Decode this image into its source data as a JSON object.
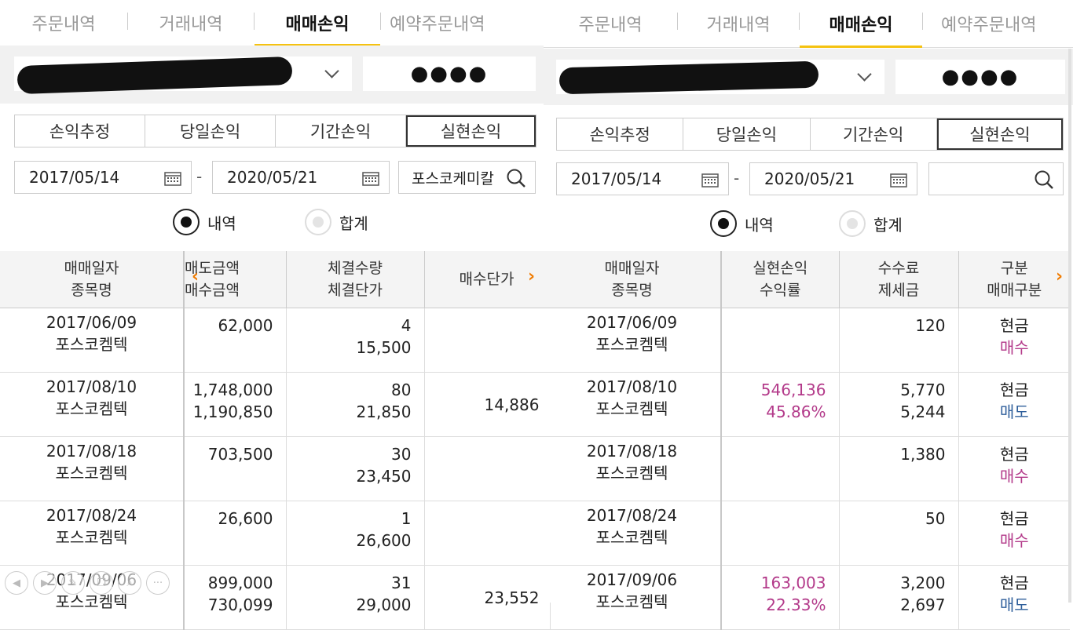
{
  "tabs": [
    "주문내역",
    "거래내역",
    "매매손익",
    "예약주문내역"
  ],
  "account": {
    "password_mask": "●●●●"
  },
  "segments": [
    "손익추정",
    "당일손익",
    "기간손익",
    "실현손익"
  ],
  "date_range": {
    "from": "2017/05/14",
    "to": "2020/05/21",
    "separator": "-"
  },
  "search": {
    "left_value": "포스코케미칼",
    "right_value": ""
  },
  "radios": [
    "내역",
    "합계"
  ],
  "left_table": {
    "headers": [
      [
        "매매일자",
        "종목명"
      ],
      [
        "매도금액",
        "매수금액"
      ],
      [
        "체결수량",
        "체결단가"
      ],
      [
        "매수단가"
      ]
    ],
    "rows": [
      {
        "date": "2017/06/09",
        "name": "포스코켐텍",
        "sell": "",
        "buy": "62,000",
        "qty": "4",
        "price": "15,500",
        "avg": ""
      },
      {
        "date": "2017/08/10",
        "name": "포스코켐텍",
        "sell": "1,748,000",
        "buy": "1,190,850",
        "qty": "80",
        "price": "21,850",
        "avg": "14,886"
      },
      {
        "date": "2017/08/18",
        "name": "포스코켐텍",
        "sell": "",
        "buy": "703,500",
        "qty": "30",
        "price": "23,450",
        "avg": ""
      },
      {
        "date": "2017/08/24",
        "name": "포스코켐텍",
        "sell": "",
        "buy": "26,600",
        "qty": "1",
        "price": "26,600",
        "avg": ""
      },
      {
        "date": "2017/09/06",
        "name": "포스코켐텍",
        "sell": "899,000",
        "buy": "730,099",
        "qty": "31",
        "price": "29,000",
        "avg": "23,552"
      }
    ]
  },
  "right_table": {
    "headers": [
      [
        "매매일자",
        "종목명"
      ],
      [
        "실현손익",
        "수익률"
      ],
      [
        "수수료",
        "제세금"
      ],
      [
        "구분",
        "매매구분"
      ]
    ],
    "rows": [
      {
        "date": "2017/06/09",
        "name": "포스코켐텍",
        "pnl": "",
        "rate": "",
        "fee": "120",
        "tax": "",
        "cls": "현금",
        "side": "매수"
      },
      {
        "date": "2017/08/10",
        "name": "포스코켐텍",
        "pnl": "546,136",
        "rate": "45.86%",
        "fee": "5,770",
        "tax": "5,244",
        "cls": "현금",
        "side": "매도"
      },
      {
        "date": "2017/08/18",
        "name": "포스코켐텍",
        "pnl": "",
        "rate": "",
        "fee": "1,380",
        "tax": "",
        "cls": "현금",
        "side": "매수"
      },
      {
        "date": "2017/08/24",
        "name": "포스코켐텍",
        "pnl": "",
        "rate": "",
        "fee": "50",
        "tax": "",
        "cls": "현금",
        "side": "매수"
      },
      {
        "date": "2017/09/06",
        "name": "포스코켐텍",
        "pnl": "163,003",
        "rate": "22.33%",
        "fee": "3,200",
        "tax": "2,697",
        "cls": "현금",
        "side": "매도"
      }
    ]
  },
  "colors": {
    "accent": "#f5c211",
    "profit": "#b33a8a",
    "sell": "#2f5f9b",
    "buy": "#b33a8a",
    "scroll_arrow": "#f07b00"
  },
  "icons": [
    "chevron-down-icon",
    "calendar-icon",
    "search-icon",
    "chevron-left-icon",
    "chevron-right-icon"
  ]
}
